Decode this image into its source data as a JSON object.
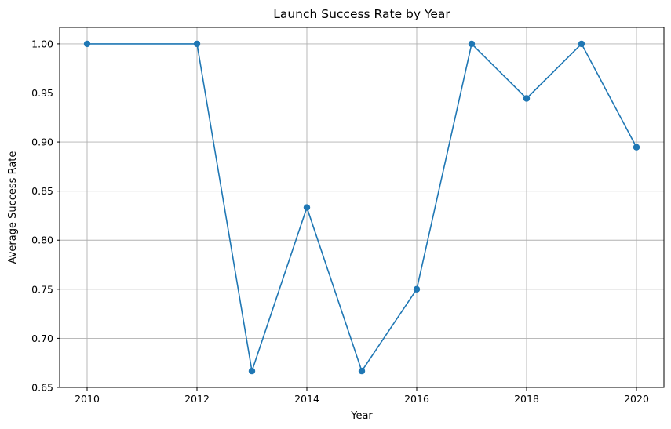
{
  "chart_data": {
    "type": "line",
    "title": "Launch Success Rate by Year",
    "xlabel": "Year",
    "ylabel": "Average Success Rate",
    "x": [
      2010,
      2012,
      2013,
      2014,
      2015,
      2016,
      2017,
      2018,
      2019,
      2020
    ],
    "series": [
      {
        "values": [
          1.0,
          1.0,
          0.6667,
          0.8333,
          0.6667,
          0.75,
          1.0,
          0.9444,
          1.0,
          0.8947
        ]
      }
    ],
    "xlim": [
      2009.5,
      2020.5
    ],
    "ylim": [
      0.65,
      1.0167
    ],
    "x_ticks": [
      2010,
      2012,
      2014,
      2016,
      2018,
      2020
    ],
    "x_tick_labels": [
      "2010",
      "2012",
      "2014",
      "2016",
      "2018",
      "2020"
    ],
    "y_ticks": [
      0.65,
      0.7,
      0.75,
      0.8,
      0.85,
      0.9,
      0.95,
      1.0
    ],
    "y_tick_labels": [
      "0.65",
      "0.70",
      "0.75",
      "0.80",
      "0.85",
      "0.90",
      "0.95",
      "1.00"
    ],
    "grid": true,
    "marker": "circle",
    "line_color": "#1f77b4"
  }
}
